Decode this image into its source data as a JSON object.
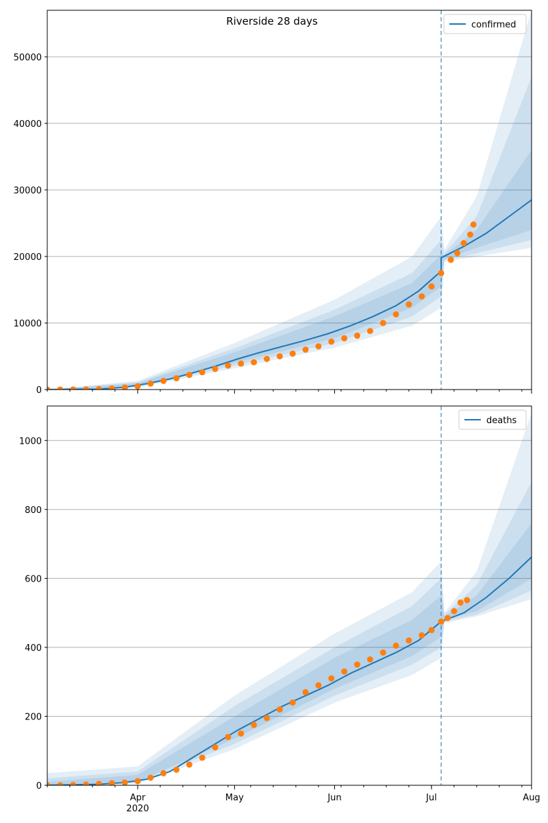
{
  "title": "Riverside 28 days",
  "colors": {
    "model": "#1f77b4",
    "observed": "#ff7f0e",
    "band": "#1f77b4",
    "grid": "#b0b0b0",
    "cutoff": "#1f77b4"
  },
  "x_axis": {
    "domain": [
      "2020-03-04",
      "2020-08-01"
    ],
    "month_ticks": [
      {
        "date": "2020-04-01",
        "label": "Apr",
        "sublabel": "2020"
      },
      {
        "date": "2020-05-01",
        "label": "May",
        "sublabel": ""
      },
      {
        "date": "2020-06-01",
        "label": "Jun",
        "sublabel": ""
      },
      {
        "date": "2020-07-01",
        "label": "Jul",
        "sublabel": ""
      },
      {
        "date": "2020-08-01",
        "label": "Aug",
        "sublabel": ""
      }
    ],
    "cutoff_date": "2020-07-04"
  },
  "chart_data": [
    {
      "type": "line",
      "legend": "confirmed",
      "legend_position": "top-right",
      "grid": "horizontal",
      "ylim": [
        0,
        57000
      ],
      "yticks": [
        "0",
        "10000",
        "20000",
        "30000",
        "40000",
        "50000"
      ],
      "model_median": [
        [
          "2020-03-04",
          0
        ],
        [
          "2020-03-20",
          80
        ],
        [
          "2020-03-28",
          350
        ],
        [
          "2020-04-04",
          900
        ],
        [
          "2020-04-11",
          1600
        ],
        [
          "2020-04-18",
          2500
        ],
        [
          "2020-04-25",
          3500
        ],
        [
          "2020-05-02",
          4600
        ],
        [
          "2020-05-09",
          5600
        ],
        [
          "2020-05-16",
          6500
        ],
        [
          "2020-05-23",
          7400
        ],
        [
          "2020-05-30",
          8400
        ],
        [
          "2020-06-06",
          9600
        ],
        [
          "2020-06-13",
          11000
        ],
        [
          "2020-06-20",
          12600
        ],
        [
          "2020-06-27",
          14800
        ],
        [
          "2020-07-04",
          17800
        ],
        [
          "2020-07-04",
          19800
        ],
        [
          "2020-07-11",
          21500
        ],
        [
          "2020-07-18",
          23500
        ],
        [
          "2020-07-25",
          26000
        ],
        [
          "2020-08-01",
          28500
        ]
      ],
      "bands": [
        {
          "lower": [
            [
              "2020-03-04",
              0
            ],
            [
              "2020-04-01",
              300
            ],
            [
              "2020-05-01",
              3200
            ],
            [
              "2020-06-01",
              6300
            ],
            [
              "2020-06-25",
              9600
            ],
            [
              "2020-07-04",
              12300
            ],
            [
              "2020-07-05",
              19200
            ],
            [
              "2020-07-15",
              20000
            ],
            [
              "2020-08-01",
              21300
            ]
          ],
          "upper": [
            [
              "2020-03-04",
              0
            ],
            [
              "2020-04-01",
              1300
            ],
            [
              "2020-05-01",
              7000
            ],
            [
              "2020-06-01",
              13500
            ],
            [
              "2020-06-25",
              20000
            ],
            [
              "2020-07-04",
              26000
            ],
            [
              "2020-07-05",
              21000
            ],
            [
              "2020-07-15",
              29000
            ],
            [
              "2020-08-01",
              57000
            ]
          ]
        },
        {
          "lower": [
            [
              "2020-03-04",
              0
            ],
            [
              "2020-04-01",
              400
            ],
            [
              "2020-05-01",
              3600
            ],
            [
              "2020-06-01",
              7000
            ],
            [
              "2020-06-25",
              11000
            ],
            [
              "2020-07-04",
              14000
            ],
            [
              "2020-07-05",
              19400
            ],
            [
              "2020-07-15",
              20500
            ],
            [
              "2020-08-01",
              22500
            ]
          ],
          "upper": [
            [
              "2020-03-04",
              0
            ],
            [
              "2020-04-01",
              1100
            ],
            [
              "2020-05-01",
              6200
            ],
            [
              "2020-06-01",
              12000
            ],
            [
              "2020-06-25",
              17500
            ],
            [
              "2020-07-04",
              22500
            ],
            [
              "2020-07-05",
              20500
            ],
            [
              "2020-07-15",
              26000
            ],
            [
              "2020-08-01",
              47000
            ]
          ]
        },
        {
          "lower": [
            [
              "2020-03-04",
              0
            ],
            [
              "2020-04-01",
              500
            ],
            [
              "2020-05-01",
              4000
            ],
            [
              "2020-06-01",
              7700
            ],
            [
              "2020-06-25",
              12300
            ],
            [
              "2020-07-04",
              15500
            ],
            [
              "2020-07-05",
              19600
            ],
            [
              "2020-07-15",
              21300
            ],
            [
              "2020-08-01",
              24000
            ]
          ],
          "upper": [
            [
              "2020-03-04",
              0
            ],
            [
              "2020-04-01",
              950
            ],
            [
              "2020-05-01",
              5600
            ],
            [
              "2020-06-01",
              11000
            ],
            [
              "2020-06-25",
              16000
            ],
            [
              "2020-07-04",
              20300
            ],
            [
              "2020-07-05",
              20200
            ],
            [
              "2020-07-15",
              24000
            ],
            [
              "2020-08-01",
              36000
            ]
          ]
        }
      ],
      "observed_points": [
        [
          "2020-03-04",
          0
        ],
        [
          "2020-03-08",
          5
        ],
        [
          "2020-03-12",
          10
        ],
        [
          "2020-03-16",
          25
        ],
        [
          "2020-03-20",
          60
        ],
        [
          "2020-03-24",
          150
        ],
        [
          "2020-03-28",
          300
        ],
        [
          "2020-04-01",
          500
        ],
        [
          "2020-04-05",
          900
        ],
        [
          "2020-04-09",
          1300
        ],
        [
          "2020-04-13",
          1700
        ],
        [
          "2020-04-17",
          2200
        ],
        [
          "2020-04-21",
          2600
        ],
        [
          "2020-04-25",
          3100
        ],
        [
          "2020-04-29",
          3600
        ],
        [
          "2020-05-03",
          3900
        ],
        [
          "2020-05-07",
          4100
        ],
        [
          "2020-05-11",
          4600
        ],
        [
          "2020-05-15",
          5000
        ],
        [
          "2020-05-19",
          5400
        ],
        [
          "2020-05-23",
          6000
        ],
        [
          "2020-05-27",
          6500
        ],
        [
          "2020-05-31",
          7200
        ],
        [
          "2020-06-04",
          7700
        ],
        [
          "2020-06-08",
          8100
        ],
        [
          "2020-06-12",
          8800
        ],
        [
          "2020-06-16",
          10000
        ],
        [
          "2020-06-20",
          11300
        ],
        [
          "2020-06-24",
          12800
        ],
        [
          "2020-06-28",
          14000
        ],
        [
          "2020-07-01",
          15500
        ],
        [
          "2020-07-04",
          17500
        ],
        [
          "2020-07-07",
          19500
        ],
        [
          "2020-07-09",
          20500
        ],
        [
          "2020-07-11",
          22000
        ],
        [
          "2020-07-13",
          23300
        ],
        [
          "2020-07-14",
          24800
        ]
      ]
    },
    {
      "type": "line",
      "legend": "deaths",
      "legend_position": "top-right",
      "grid": "horizontal",
      "ylim": [
        0,
        1100
      ],
      "yticks": [
        "0",
        "200",
        "400",
        "600",
        "800",
        "1000"
      ],
      "model_median": [
        [
          "2020-03-04",
          0
        ],
        [
          "2020-03-20",
          3
        ],
        [
          "2020-03-28",
          8
        ],
        [
          "2020-04-04",
          18
        ],
        [
          "2020-04-11",
          40
        ],
        [
          "2020-04-18",
          80
        ],
        [
          "2020-04-25",
          120
        ],
        [
          "2020-05-02",
          160
        ],
        [
          "2020-05-09",
          195
        ],
        [
          "2020-05-16",
          230
        ],
        [
          "2020-05-23",
          260
        ],
        [
          "2020-05-30",
          290
        ],
        [
          "2020-06-06",
          325
        ],
        [
          "2020-06-13",
          355
        ],
        [
          "2020-06-20",
          385
        ],
        [
          "2020-06-27",
          420
        ],
        [
          "2020-07-04",
          475
        ],
        [
          "2020-07-11",
          500
        ],
        [
          "2020-07-18",
          545
        ],
        [
          "2020-07-25",
          600
        ],
        [
          "2020-08-01",
          662
        ]
      ],
      "bands": [
        {
          "lower": [
            [
              "2020-03-04",
              0
            ],
            [
              "2020-04-01",
              5
            ],
            [
              "2020-05-01",
              105
            ],
            [
              "2020-06-01",
              240
            ],
            [
              "2020-06-25",
              320
            ],
            [
              "2020-07-04",
              370
            ],
            [
              "2020-07-05",
              470
            ],
            [
              "2020-07-15",
              490
            ],
            [
              "2020-08-01",
              540
            ]
          ],
          "upper": [
            [
              "2020-03-04",
              35
            ],
            [
              "2020-04-01",
              55
            ],
            [
              "2020-05-01",
              260
            ],
            [
              "2020-06-01",
              440
            ],
            [
              "2020-06-25",
              560
            ],
            [
              "2020-07-04",
              650
            ],
            [
              "2020-07-05",
              500
            ],
            [
              "2020-07-15",
              620
            ],
            [
              "2020-08-01",
              1080
            ]
          ]
        },
        {
          "lower": [
            [
              "2020-03-04",
              0
            ],
            [
              "2020-04-01",
              8
            ],
            [
              "2020-05-01",
              120
            ],
            [
              "2020-06-01",
              260
            ],
            [
              "2020-06-25",
              350
            ],
            [
              "2020-07-04",
              400
            ],
            [
              "2020-07-05",
              475
            ],
            [
              "2020-07-15",
              495
            ],
            [
              "2020-08-01",
              565
            ]
          ],
          "upper": [
            [
              "2020-03-04",
              20
            ],
            [
              "2020-04-01",
              40
            ],
            [
              "2020-05-01",
              230
            ],
            [
              "2020-06-01",
              400
            ],
            [
              "2020-06-25",
              520
            ],
            [
              "2020-07-04",
              600
            ],
            [
              "2020-07-05",
              495
            ],
            [
              "2020-07-15",
              580
            ],
            [
              "2020-08-01",
              880
            ]
          ]
        },
        {
          "lower": [
            [
              "2020-03-04",
              0
            ],
            [
              "2020-04-01",
              10
            ],
            [
              "2020-05-01",
              135
            ],
            [
              "2020-06-01",
              280
            ],
            [
              "2020-06-25",
              375
            ],
            [
              "2020-07-04",
              430
            ],
            [
              "2020-07-05",
              480
            ],
            [
              "2020-07-15",
              505
            ],
            [
              "2020-08-01",
              600
            ]
          ],
          "upper": [
            [
              "2020-03-04",
              10
            ],
            [
              "2020-04-01",
              30
            ],
            [
              "2020-05-01",
              200
            ],
            [
              "2020-06-01",
              370
            ],
            [
              "2020-06-25",
              480
            ],
            [
              "2020-07-04",
              550
            ],
            [
              "2020-07-05",
              490
            ],
            [
              "2020-07-15",
              550
            ],
            [
              "2020-08-01",
              760
            ]
          ]
        }
      ],
      "observed_points": [
        [
          "2020-03-04",
          0
        ],
        [
          "2020-03-08",
          0
        ],
        [
          "2020-03-12",
          1
        ],
        [
          "2020-03-16",
          2
        ],
        [
          "2020-03-20",
          4
        ],
        [
          "2020-03-24",
          6
        ],
        [
          "2020-03-28",
          8
        ],
        [
          "2020-04-01",
          12
        ],
        [
          "2020-04-05",
          22
        ],
        [
          "2020-04-09",
          35
        ],
        [
          "2020-04-13",
          45
        ],
        [
          "2020-04-17",
          60
        ],
        [
          "2020-04-21",
          80
        ],
        [
          "2020-04-25",
          110
        ],
        [
          "2020-04-29",
          140
        ],
        [
          "2020-05-03",
          150
        ],
        [
          "2020-05-07",
          175
        ],
        [
          "2020-05-11",
          195
        ],
        [
          "2020-05-15",
          220
        ],
        [
          "2020-05-19",
          240
        ],
        [
          "2020-05-23",
          270
        ],
        [
          "2020-05-27",
          290
        ],
        [
          "2020-05-31",
          310
        ],
        [
          "2020-06-04",
          330
        ],
        [
          "2020-06-08",
          350
        ],
        [
          "2020-06-12",
          365
        ],
        [
          "2020-06-16",
          385
        ],
        [
          "2020-06-20",
          405
        ],
        [
          "2020-06-24",
          420
        ],
        [
          "2020-06-28",
          435
        ],
        [
          "2020-07-01",
          450
        ],
        [
          "2020-07-04",
          475
        ],
        [
          "2020-07-06",
          485
        ],
        [
          "2020-07-08",
          505
        ],
        [
          "2020-07-10",
          530
        ],
        [
          "2020-07-12",
          537
        ]
      ]
    }
  ]
}
